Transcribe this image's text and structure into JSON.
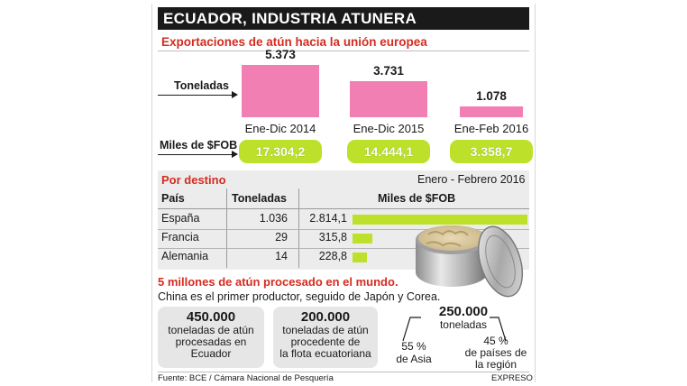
{
  "header": {
    "title": "ECUADOR, INDUSTRIA ATUNERA"
  },
  "exports": {
    "heading": "Exportaciones de atún hacia la unión europea",
    "row_tons_label": "Toneladas",
    "row_fob_label": "Miles de $FOB"
  },
  "chart_data": [
    {
      "type": "bar",
      "title": "Exportaciones de atún hacia la unión europea",
      "categories": [
        "Ene-Dic 2014",
        "Ene-Dic 2015",
        "Ene-Feb 2016"
      ],
      "series": [
        {
          "name": "Toneladas",
          "values": [
            5373,
            3731,
            1078
          ],
          "labels": [
            "5.373",
            "3.731",
            "1.078"
          ]
        }
      ],
      "fob_labels": [
        "17.304,2",
        "14.444,1",
        "3.358,7"
      ],
      "bar_color": "#f27fb4",
      "pill_color": "#bde12a"
    },
    {
      "type": "table",
      "title": "Por destino",
      "subtitle": "Enero - Febrero 2016",
      "columns": [
        "País",
        "Toneladas",
        "Miles de $FOB"
      ],
      "rows": [
        {
          "country": "España",
          "tons": "1.036",
          "fob_label": "2.814,1",
          "fob": 2814.1
        },
        {
          "country": "Francia",
          "tons": "29",
          "fob_label": "315,8",
          "fob": 315.8
        },
        {
          "country": "Alemania",
          "tons": "14",
          "fob_label": "228,8",
          "fob": 228.8
        }
      ],
      "bar_color": "#bde12a"
    }
  ],
  "world": {
    "heading": "5 millones de atún procesado en el mundo.",
    "subheading": "China es el primer productor, seguido de Japón y Corea.",
    "box1": {
      "number": "450.000",
      "l1": "toneladas de atún",
      "l2": "procesadas en",
      "l3": "Ecuador"
    },
    "box2": {
      "number": "200.000",
      "l1": "toneladas de atún",
      "l2": "procedente de",
      "l3": "la flota ecuatoriana"
    },
    "split": {
      "number": "250.000",
      "unit": "toneladas",
      "left_pct": "55 %",
      "left_label": "de Asia",
      "right_pct": "45 %",
      "right_l1": "de países de",
      "right_l2": "la región"
    }
  },
  "footer": {
    "source": "Fuente: BCE / Cámara Nacional de Pesquería",
    "credit": "EXPRESO"
  }
}
